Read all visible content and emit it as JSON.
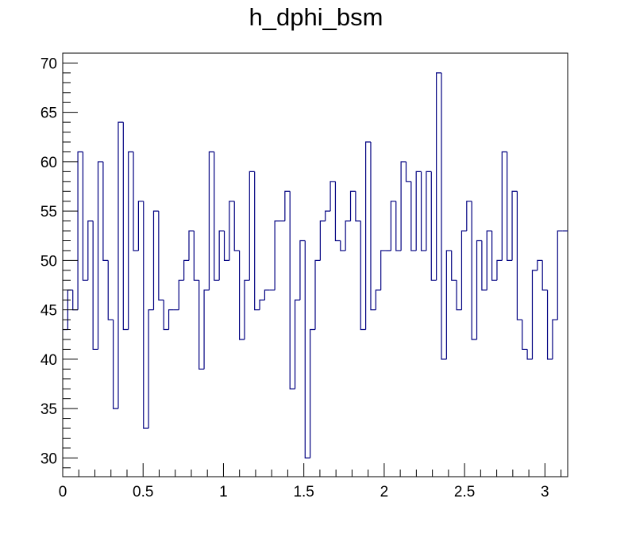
{
  "chart_data": {
    "type": "histogram",
    "title": "h_dphi_bsm",
    "xlabel": "",
    "ylabel": "",
    "xlim": [
      0,
      3.1416
    ],
    "ylim": [
      28.1,
      71
    ],
    "bins": 100,
    "x_ticks": [
      "0",
      "0.5",
      "1",
      "1.5",
      "2",
      "2.5",
      "3"
    ],
    "y_ticks": [
      "30",
      "35",
      "40",
      "45",
      "50",
      "55",
      "60",
      "65",
      "70"
    ],
    "values": [
      43,
      47,
      45,
      61,
      48,
      54,
      41,
      60,
      50,
      44,
      35,
      64,
      43,
      61,
      51,
      56,
      33,
      45,
      55,
      46,
      43,
      45,
      45,
      48,
      50,
      53,
      48,
      39,
      47,
      61,
      48,
      53,
      50,
      56,
      51,
      42,
      48,
      59,
      45,
      46,
      47,
      47,
      54,
      54,
      57,
      37,
      46,
      52,
      30,
      43,
      50,
      54,
      55,
      58,
      52,
      51,
      54,
      57,
      54,
      43,
      62,
      45,
      47,
      51,
      51,
      56,
      51,
      60,
      58,
      51,
      59,
      51,
      59,
      48,
      69,
      40,
      51,
      48,
      45,
      53,
      56,
      42,
      52,
      47,
      53,
      48,
      50,
      61,
      50,
      57,
      44,
      41,
      40,
      49,
      50,
      47,
      40,
      44,
      53,
      53
    ],
    "line_color": "#000080",
    "grid": false,
    "legend": "none"
  }
}
